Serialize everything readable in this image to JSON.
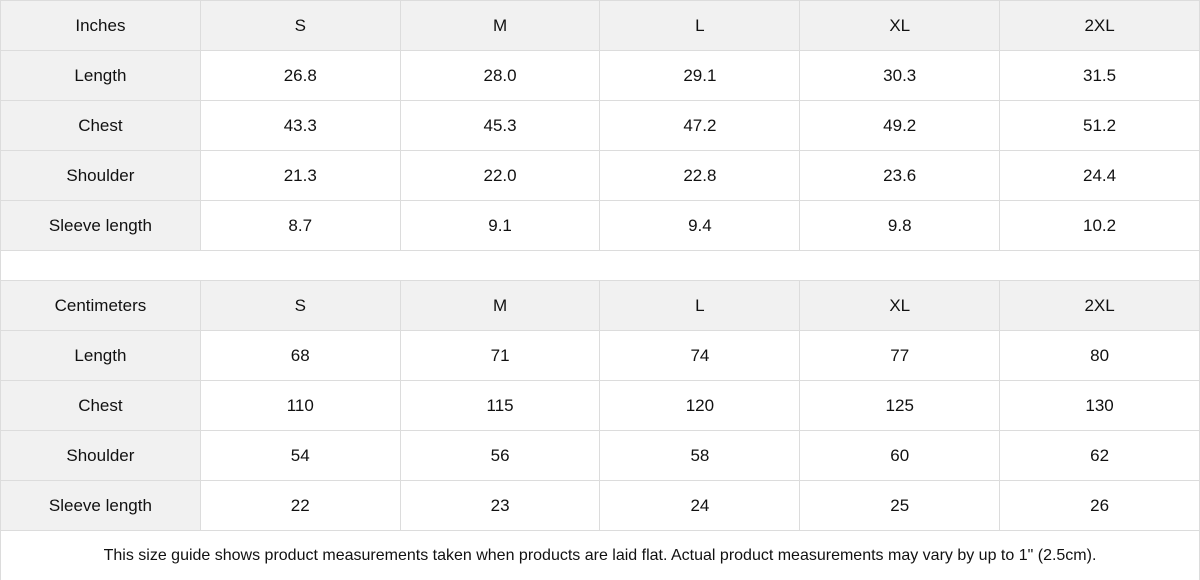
{
  "inches": {
    "header": [
      "Inches",
      "S",
      "M",
      "L",
      "XL",
      "2XL"
    ],
    "rows": [
      [
        "Length",
        "26.8",
        "28.0",
        "29.1",
        "30.3",
        "31.5"
      ],
      [
        "Chest",
        "43.3",
        "45.3",
        "47.2",
        "49.2",
        "51.2"
      ],
      [
        "Shoulder",
        "21.3",
        "22.0",
        "22.8",
        "23.6",
        "24.4"
      ],
      [
        "Sleeve length",
        "8.7",
        "9.1",
        "9.4",
        "9.8",
        "10.2"
      ]
    ]
  },
  "centimeters": {
    "header": [
      "Centimeters",
      "S",
      "M",
      "L",
      "XL",
      "2XL"
    ],
    "rows": [
      [
        "Length",
        "68",
        "71",
        "74",
        "77",
        "80"
      ],
      [
        "Chest",
        "110",
        "115",
        "120",
        "125",
        "130"
      ],
      [
        "Shoulder",
        "54",
        "56",
        "58",
        "60",
        "62"
      ],
      [
        "Sleeve length",
        "22",
        "23",
        "24",
        "25",
        "26"
      ]
    ]
  },
  "note": "This size guide shows product measurements taken when products are laid flat.  Actual product measurements may vary by up to 1\" (2.5cm)."
}
